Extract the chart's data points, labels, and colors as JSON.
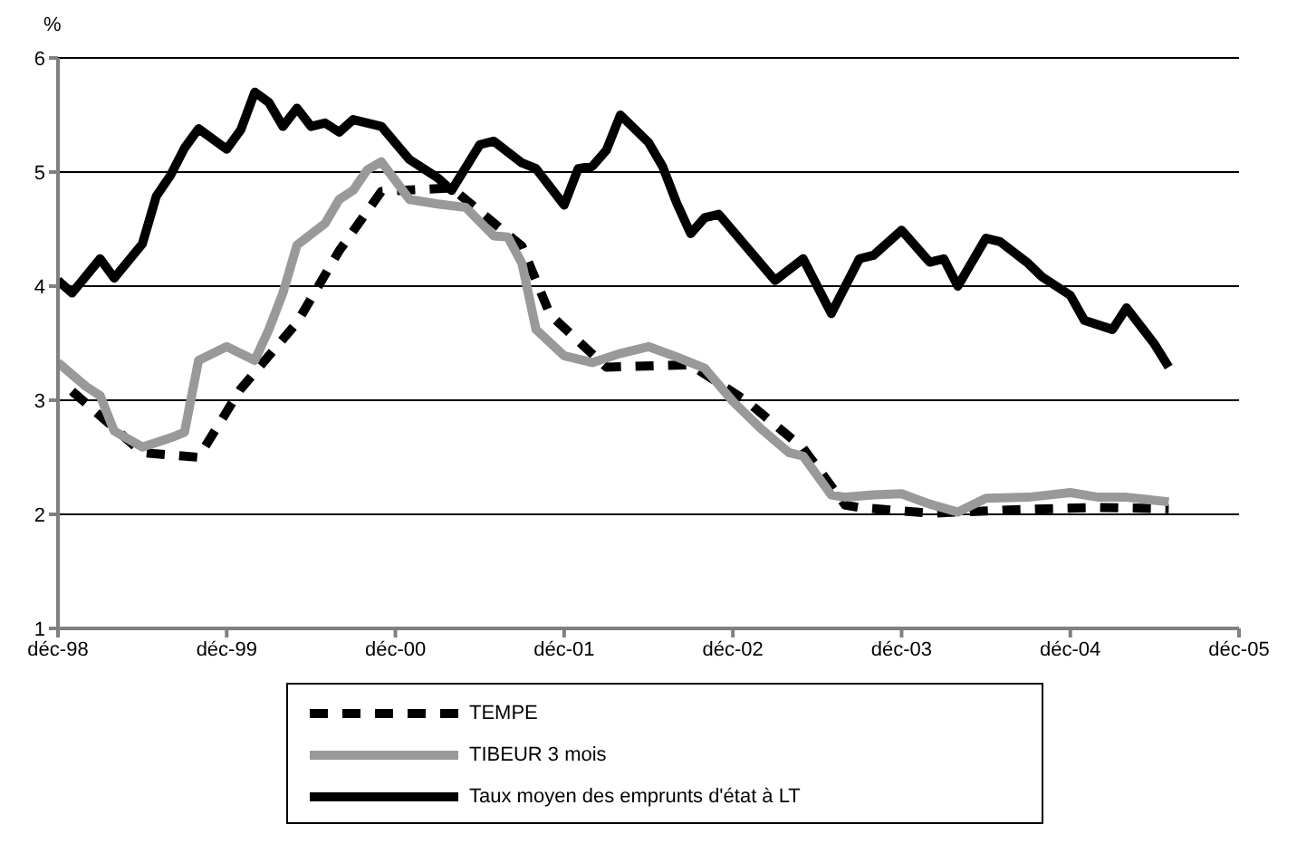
{
  "chart_data": {
    "type": "line",
    "ylabel": "%",
    "xlim": [
      "1998-12",
      "2005-12"
    ],
    "xticks": [
      {
        "value": "1998-12",
        "label": "déc-98"
      },
      {
        "value": "1999-12",
        "label": "déc-99"
      },
      {
        "value": "2000-12",
        "label": "déc-00"
      },
      {
        "value": "2001-12",
        "label": "déc-01"
      },
      {
        "value": "2002-12",
        "label": "déc-02"
      },
      {
        "value": "2003-12",
        "label": "déc-03"
      },
      {
        "value": "2004-12",
        "label": "déc-04"
      },
      {
        "value": "2005-12",
        "label": "déc-05"
      }
    ],
    "ylim": [
      1,
      6
    ],
    "yticks": [
      1,
      2,
      3,
      4,
      5,
      6
    ],
    "grid": "y",
    "legend": "bottom",
    "marker": "none",
    "series": [
      {
        "name": "TEMPE",
        "color": "#000000",
        "line_style": "dashed",
        "x": [
          "1999-01",
          "1999-06",
          "1999-10",
          "2000-01",
          "2000-05",
          "2000-08",
          "2000-11",
          "2001-04",
          "2001-09",
          "2001-11",
          "2002-03",
          "2002-09",
          "2003-01",
          "2003-05",
          "2003-08",
          "2003-09",
          "2004-02",
          "2004-08",
          "2005-02",
          "2005-07"
        ],
        "values": [
          3.08,
          2.54,
          2.5,
          3.1,
          3.68,
          4.31,
          4.83,
          4.86,
          4.35,
          3.75,
          3.29,
          3.31,
          2.99,
          2.58,
          2.08,
          2.06,
          2.01,
          2.04,
          2.06,
          2.05
        ]
      },
      {
        "name": "TIBEUR 3 mois",
        "color": "#999999",
        "line_style": "solid",
        "x": [
          "1998-12",
          "1999-02",
          "1999-03",
          "1999-04",
          "1999-06",
          "1999-08",
          "1999-09",
          "1999-10",
          "1999-12",
          "2000-02",
          "2000-03",
          "2000-04",
          "2000-05",
          "2000-07",
          "2000-08",
          "2000-09",
          "2000-10",
          "2000-11",
          "2001-01",
          "2001-03",
          "2001-05",
          "2001-07",
          "2001-08",
          "2001-09",
          "2001-10",
          "2001-12",
          "2002-02",
          "2002-04",
          "2002-06",
          "2002-08",
          "2002-10",
          "2002-12",
          "2003-02",
          "2003-04",
          "2003-05",
          "2003-07",
          "2003-08",
          "2003-10",
          "2003-12",
          "2004-02",
          "2004-04",
          "2004-06",
          "2004-09",
          "2004-12",
          "2005-02",
          "2005-04",
          "2005-07"
        ],
        "values": [
          3.33,
          3.12,
          3.04,
          2.73,
          2.59,
          2.67,
          2.72,
          3.35,
          3.47,
          3.35,
          3.62,
          3.94,
          4.36,
          4.55,
          4.76,
          4.84,
          5.02,
          5.09,
          4.76,
          4.72,
          4.69,
          4.44,
          4.43,
          4.2,
          3.62,
          3.39,
          3.33,
          3.41,
          3.47,
          3.38,
          3.28,
          2.99,
          2.75,
          2.54,
          2.51,
          2.17,
          2.15,
          2.17,
          2.18,
          2.09,
          2.02,
          2.14,
          2.15,
          2.19,
          2.15,
          2.15,
          2.11
        ]
      },
      {
        "name": "Taux moyen des emprunts d'état à LT",
        "color": "#000000",
        "line_style": "solid",
        "x": [
          "1998-12",
          "1999-01",
          "1999-03",
          "1999-04",
          "1999-06",
          "1999-07",
          "1999-08",
          "1999-09",
          "1999-10",
          "1999-12",
          "2000-01",
          "2000-02",
          "2000-03",
          "2000-04",
          "2000-05",
          "2000-06",
          "2000-07",
          "2000-08",
          "2000-09",
          "2000-11",
          "2001-01",
          "2001-02",
          "2001-03",
          "2001-04",
          "2001-06",
          "2001-07",
          "2001-09",
          "2001-10",
          "2001-12",
          "2002-01",
          "2002-02",
          "2002-03",
          "2002-04",
          "2002-06",
          "2002-07",
          "2002-08",
          "2002-09",
          "2002-10",
          "2002-11",
          "2003-01",
          "2003-03",
          "2003-05",
          "2003-07",
          "2003-09",
          "2003-10",
          "2003-12",
          "2004-02",
          "2004-03",
          "2004-04",
          "2004-06",
          "2004-07",
          "2004-09",
          "2004-10",
          "2004-12",
          "2005-01",
          "2005-03",
          "2005-04",
          "2005-06",
          "2005-07"
        ],
        "values": [
          4.05,
          3.94,
          4.24,
          4.07,
          4.37,
          4.79,
          4.97,
          5.21,
          5.38,
          5.2,
          5.37,
          5.7,
          5.61,
          5.4,
          5.56,
          5.4,
          5.43,
          5.35,
          5.46,
          5.4,
          5.11,
          5.03,
          4.95,
          4.84,
          5.24,
          5.27,
          5.08,
          5.03,
          4.71,
          5.03,
          5.05,
          5.19,
          5.5,
          5.26,
          5.05,
          4.73,
          4.46,
          4.6,
          4.63,
          4.34,
          4.05,
          4.24,
          3.76,
          4.24,
          4.27,
          4.49,
          4.21,
          4.24,
          4.0,
          4.42,
          4.39,
          4.2,
          4.08,
          3.92,
          3.7,
          3.62,
          3.81,
          3.49,
          3.29
        ]
      }
    ]
  }
}
